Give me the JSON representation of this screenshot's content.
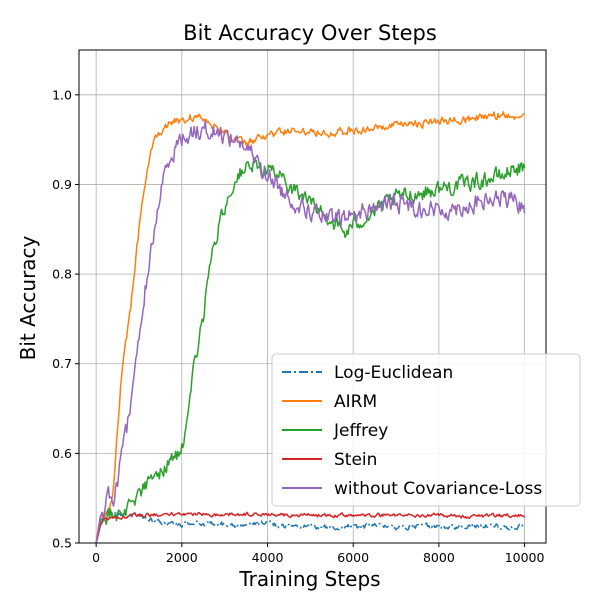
{
  "chart_data": {
    "type": "line",
    "title": "Bit Accuracy Over Steps",
    "xlabel": "Training Steps",
    "ylabel": "Bit Accuracy",
    "xlim": [
      -400,
      10500
    ],
    "ylim": [
      0.5,
      1.05
    ],
    "xticks": [
      0,
      2000,
      4000,
      6000,
      8000,
      10000
    ],
    "yticks": [
      0.5,
      0.6,
      0.7,
      0.8,
      0.9,
      1.0
    ],
    "xtick_labels": [
      "0",
      "2000",
      "4000",
      "6000",
      "8000",
      "10000"
    ],
    "ytick_labels": [
      "0.5",
      "0.6",
      "0.7",
      "0.8",
      "0.9",
      "1.0"
    ],
    "grid": true,
    "legend_position": "lower-right",
    "series": [
      {
        "name": "Log-Euclidean",
        "color": "#1f77b4",
        "dash": "dashdot",
        "x": [
          0,
          100,
          200,
          400,
          600,
          800,
          1000,
          1200,
          1400,
          1600,
          2000,
          2500,
          3000,
          3500,
          4000,
          4500,
          5000,
          5500,
          6000,
          6500,
          7000,
          7500,
          8000,
          8500,
          9000,
          9500,
          10000
        ],
        "y": [
          0.5,
          0.525,
          0.53,
          0.532,
          0.533,
          0.532,
          0.531,
          0.528,
          0.524,
          0.522,
          0.521,
          0.522,
          0.521,
          0.52,
          0.522,
          0.519,
          0.519,
          0.517,
          0.518,
          0.519,
          0.518,
          0.519,
          0.519,
          0.517,
          0.519,
          0.518,
          0.518
        ],
        "noise": 0.0025
      },
      {
        "name": "AIRM",
        "color": "#ff7f0e",
        "dash": "solid",
        "x": [
          0,
          100,
          200,
          300,
          400,
          500,
          600,
          800,
          1000,
          1200,
          1400,
          1600,
          1800,
          2000,
          2200,
          2500,
          2800,
          3000,
          3200,
          3500,
          4000,
          4500,
          5000,
          5500,
          6000,
          6500,
          7000,
          7500,
          8000,
          8500,
          9000,
          9500,
          10000
        ],
        "y": [
          0.5,
          0.53,
          0.53,
          0.535,
          0.56,
          0.63,
          0.69,
          0.76,
          0.85,
          0.92,
          0.955,
          0.965,
          0.97,
          0.972,
          0.975,
          0.974,
          0.965,
          0.96,
          0.95,
          0.945,
          0.955,
          0.96,
          0.96,
          0.958,
          0.96,
          0.962,
          0.965,
          0.968,
          0.97,
          0.972,
          0.975,
          0.978,
          0.975
        ],
        "noise": 0.004
      },
      {
        "name": "Jeffrey",
        "color": "#2ca02c",
        "dash": "solid",
        "x": [
          0,
          100,
          200,
          400,
          600,
          800,
          1000,
          1200,
          1400,
          1600,
          1800,
          2000,
          2100,
          2200,
          2300,
          2400,
          2500,
          2600,
          2800,
          3000,
          3200,
          3400,
          3600,
          3800,
          4000,
          4200,
          4500,
          5000,
          5500,
          5800,
          6000,
          6500,
          7000,
          7500,
          8000,
          8500,
          9000,
          9500,
          9800,
          10000
        ],
        "y": [
          0.5,
          0.52,
          0.53,
          0.535,
          0.53,
          0.545,
          0.555,
          0.565,
          0.575,
          0.585,
          0.595,
          0.605,
          0.62,
          0.66,
          0.7,
          0.73,
          0.75,
          0.8,
          0.84,
          0.875,
          0.9,
          0.915,
          0.92,
          0.918,
          0.92,
          0.91,
          0.9,
          0.88,
          0.86,
          0.845,
          0.855,
          0.87,
          0.885,
          0.89,
          0.895,
          0.9,
          0.905,
          0.91,
          0.92,
          0.915
        ],
        "noise": 0.008
      },
      {
        "name": "Stein",
        "color": "#d62728",
        "dash": "solid",
        "x": [
          0,
          100,
          200,
          400,
          600,
          800,
          1000,
          1200,
          1500,
          2000,
          2500,
          3000,
          3500,
          4000,
          4500,
          5000,
          5500,
          6000,
          6500,
          7000,
          7500,
          8000,
          8500,
          9000,
          9500,
          10000
        ],
        "y": [
          0.5,
          0.52,
          0.527,
          0.528,
          0.529,
          0.53,
          0.531,
          0.531,
          0.532,
          0.532,
          0.532,
          0.532,
          0.532,
          0.532,
          0.531,
          0.531,
          0.531,
          0.531,
          0.531,
          0.531,
          0.531,
          0.531,
          0.53,
          0.53,
          0.531,
          0.53
        ],
        "noise": 0.0018
      },
      {
        "name": "without Covariance-Loss",
        "color": "#9467bd",
        "dash": "solid",
        "x": [
          0,
          100,
          200,
          300,
          400,
          500,
          700,
          900,
          1100,
          1300,
          1500,
          1700,
          1900,
          2100,
          2300,
          2500,
          2700,
          3000,
          3300,
          3600,
          4000,
          4500,
          5000,
          5500,
          6000,
          6500,
          7000,
          7500,
          8000,
          8500,
          9000,
          9500,
          10000
        ],
        "y": [
          0.5,
          0.53,
          0.54,
          0.555,
          0.55,
          0.57,
          0.62,
          0.69,
          0.77,
          0.83,
          0.89,
          0.93,
          0.945,
          0.955,
          0.96,
          0.962,
          0.96,
          0.955,
          0.95,
          0.935,
          0.91,
          0.885,
          0.87,
          0.86,
          0.865,
          0.875,
          0.88,
          0.875,
          0.87,
          0.875,
          0.88,
          0.885,
          0.875
        ],
        "noise": 0.009
      }
    ]
  }
}
